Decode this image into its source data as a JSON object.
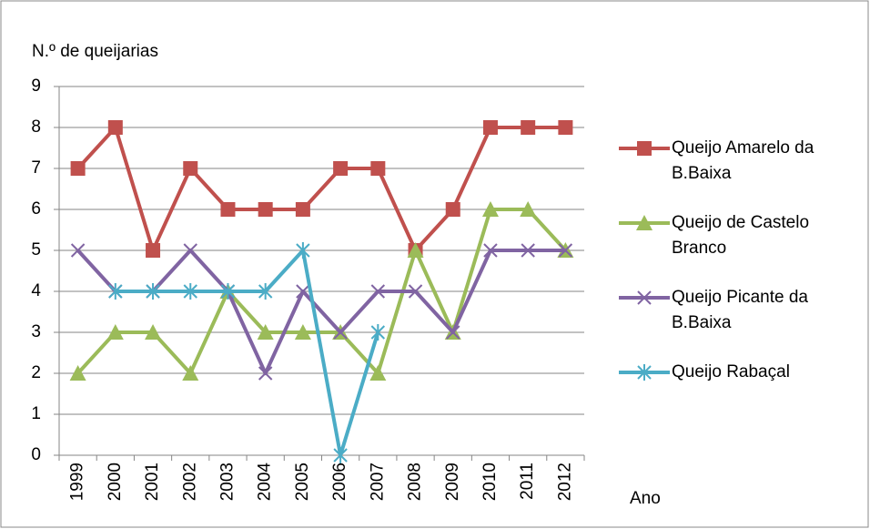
{
  "chart_data": {
    "type": "line",
    "title": "N.º de queijarias",
    "xlabel": "Ano",
    "categories": [
      "1999",
      "2000",
      "2001",
      "2002",
      "2003",
      "2004",
      "2005",
      "2006",
      "2007",
      "2008",
      "2009",
      "2010",
      "2011",
      "2012"
    ],
    "series": [
      {
        "name": "Queijo Amarelo da B.Baixa",
        "color": "#c0504d",
        "marker": "square",
        "values": [
          7,
          8,
          5,
          7,
          6,
          6,
          6,
          7,
          7,
          5,
          6,
          8,
          8,
          8
        ]
      },
      {
        "name": "Queijo de Castelo Branco",
        "color": "#9bbb59",
        "marker": "triangle",
        "values": [
          2,
          3,
          3,
          2,
          4,
          3,
          3,
          3,
          2,
          5,
          3,
          6,
          6,
          5
        ]
      },
      {
        "name": "Queijo Picante da B.Baixa",
        "color": "#8064a2",
        "marker": "x",
        "values": [
          5,
          4,
          4,
          5,
          4,
          2,
          4,
          3,
          4,
          4,
          3,
          5,
          5,
          5
        ]
      },
      {
        "name": "Queijo Rabaçal",
        "color": "#4bacc6",
        "marker": "star",
        "values": [
          null,
          4,
          4,
          4,
          4,
          4,
          5,
          0,
          3,
          null,
          null,
          null,
          null,
          null
        ]
      }
    ],
    "ylim": [
      0,
      9
    ],
    "yticks": [
      0,
      1,
      2,
      3,
      4,
      5,
      6,
      7,
      8,
      9
    ],
    "grid": true,
    "legend": "right"
  }
}
